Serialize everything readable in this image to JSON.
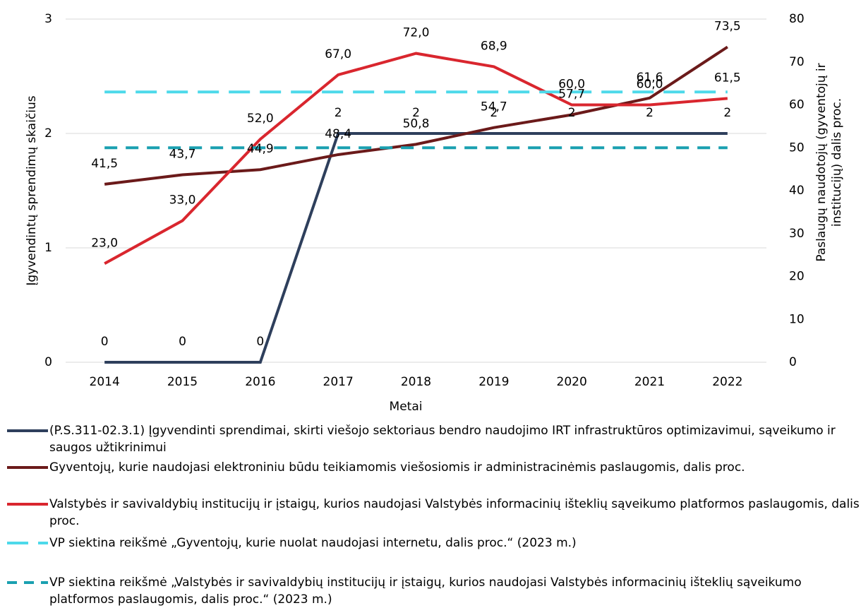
{
  "chart_data": {
    "type": "line",
    "categories": [
      "2014",
      "2015",
      "2016",
      "2017",
      "2018",
      "2019",
      "2020",
      "2021",
      "2022"
    ],
    "xlabel": "Metai",
    "ylabel": "Įgyvendintų sprendimų skaičius",
    "y2label": [
      "Paslaugų naudotojų (gyventojų ir",
      "institucijų)  dalis proc."
    ],
    "ylim": [
      0,
      3
    ],
    "yticks": [
      0,
      1,
      2,
      3
    ],
    "y2lim": [
      0,
      80
    ],
    "y2ticks": [
      0,
      10,
      20,
      30,
      40,
      50,
      60,
      70,
      80
    ],
    "grid": true,
    "series": [
      {
        "name": "(P.S.311-02.3.1) Įgyvendinti sprendimai, skirti viešojo sektoriaus bendro naudojimo IRT infrastruktūros optimizavimui, sąveikumo ir saugos užtikrinimui",
        "color": "#2e3f5c",
        "axis": "y",
        "values": [
          0,
          0,
          0,
          2,
          2,
          2,
          2,
          2,
          2
        ],
        "labels": true
      },
      {
        "name": "Gyventojų, kurie naudojasi elektroniniu būdu teikiamomis viešosiomis ir administracinėmis paslaugomis, dalis proc.",
        "color": "#6b1a1a",
        "axis": "y2",
        "values": [
          41.5,
          43.7,
          44.9,
          48.4,
          50.8,
          54.7,
          57.7,
          61.6,
          73.5
        ],
        "value_labels": [
          "41,5",
          "43,7",
          "44,9",
          "48,4",
          "50,8",
          "54,7",
          "57,7",
          "61,6",
          "73,5"
        ],
        "labels": true
      },
      {
        "name": "Valstybės ir savivaldybių institucijų ir įstaigų, kurios naudojasi Valstybės informacinių išteklių sąveikumo platformos paslaugomis, dalis proc.",
        "color": "#d9262e",
        "axis": "y2",
        "values": [
          23.0,
          33.0,
          52.0,
          67.0,
          72.0,
          68.9,
          60.0,
          60.0,
          61.5
        ],
        "value_labels": [
          "23,0",
          "33,0",
          "52,0",
          "67,0",
          "72,0",
          "68,9",
          "60,0",
          "60,0",
          "61,5"
        ],
        "labels": true
      },
      {
        "name": "VP siektina reikšmė „Gyventojų, kurie nuolat naudojasi internetu, dalis  proc.“ (2023 m.)",
        "color": "#4dd9ea",
        "axis": "y2",
        "dash": true,
        "values": [
          63,
          63,
          63,
          63,
          63,
          63,
          63,
          63,
          63
        ]
      },
      {
        "name": "VP siektina reikšmė „Valstybės ir savivaldybių institucijų ir įstaigų, kurios naudojasi Valstybės informacinių išteklių sąveikumo platformos paslaugomis, dalis proc.“  (2023 m.)",
        "color": "#1aa0b0",
        "axis": "y2",
        "dash": true,
        "values": [
          50,
          50,
          50,
          50,
          50,
          50,
          50,
          50,
          50
        ]
      }
    ]
  }
}
